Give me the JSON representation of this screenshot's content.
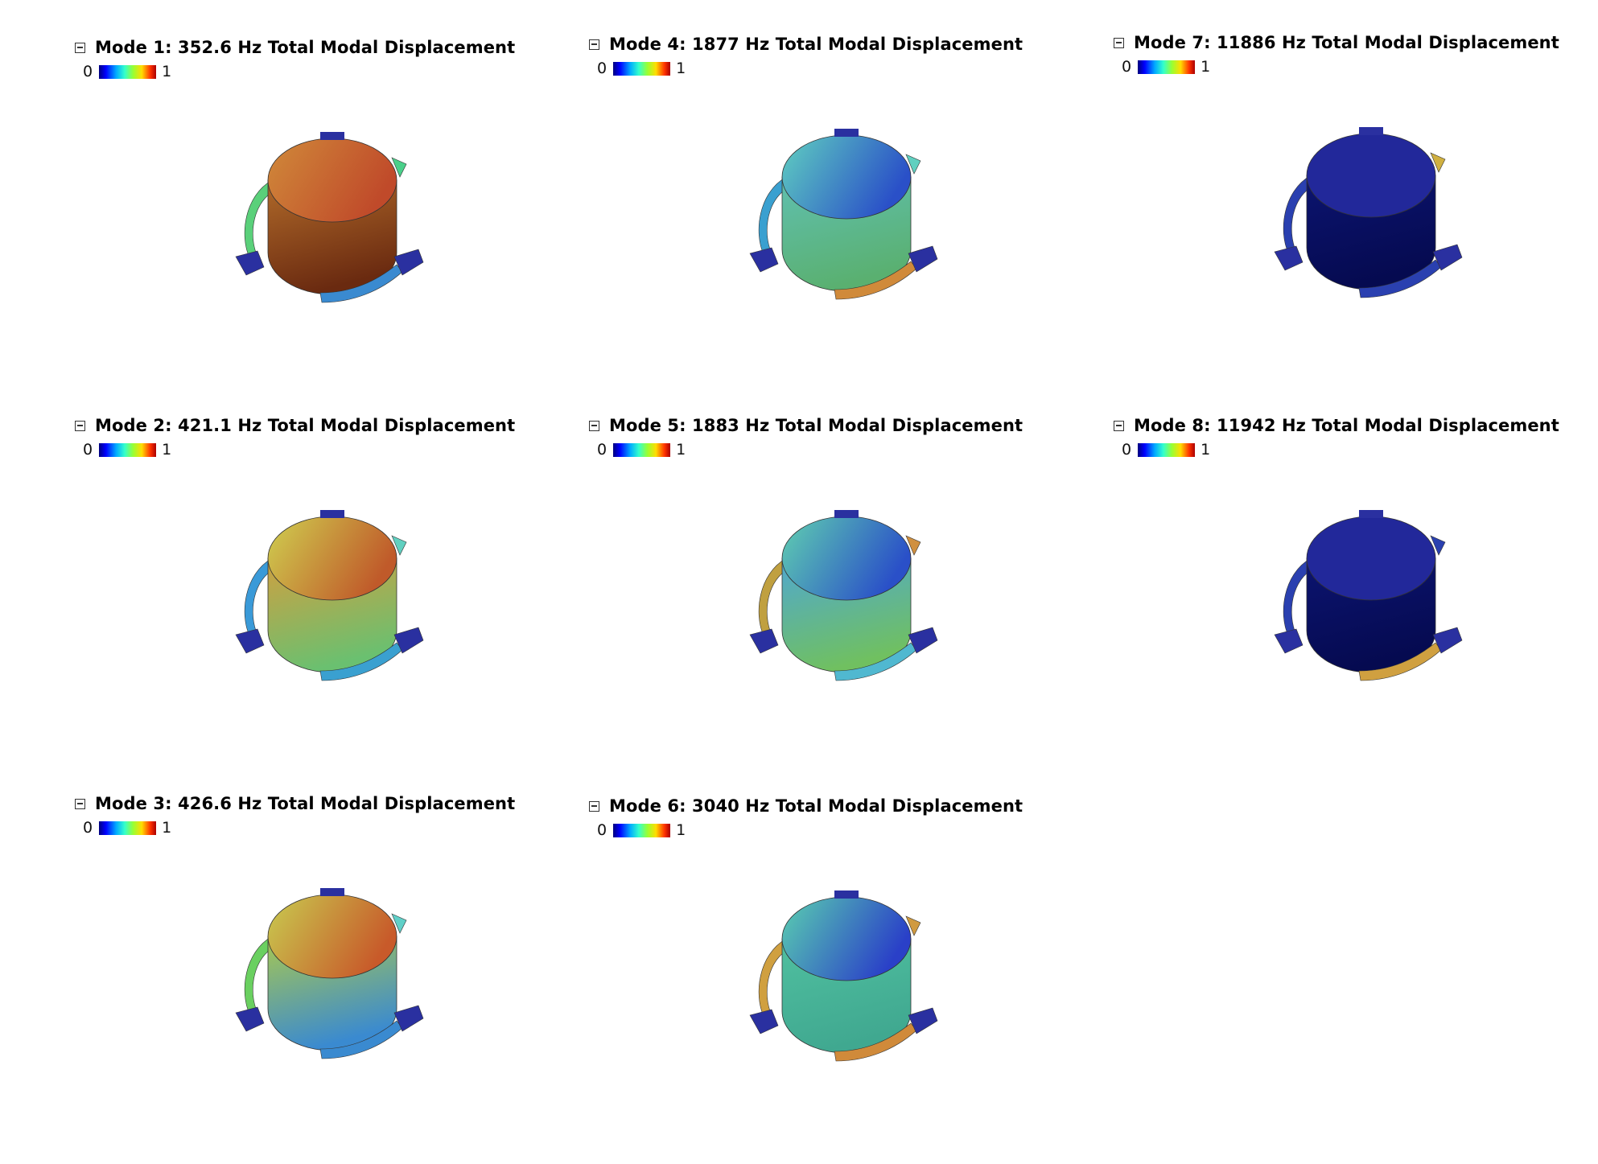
{
  "panels": [
    {
      "id": "mode-1",
      "title": "Mode 1: 352.6 Hz Total Modal Displacement",
      "legend_min": "0",
      "legend_max": "1",
      "colors": {
        "top_a": "#d08a3a",
        "top_b": "#c04a2a",
        "side_a": "#b06a2a",
        "side_b": "#6a2a10",
        "arm_left": "#5ad07a",
        "arm_right": "#3a8ad0",
        "tab": "#4ad08a"
      }
    },
    {
      "id": "mode-2",
      "title": "Mode 2: 421.1 Hz Total Modal Displacement",
      "legend_min": "0",
      "legend_max": "1",
      "colors": {
        "top_a": "#cfd050",
        "top_b": "#c05a2a",
        "side_a": "#d0a040",
        "side_b": "#6ac070",
        "arm_left": "#3a9ad8",
        "arm_right": "#3aa0d0",
        "tab": "#60d0c0"
      }
    },
    {
      "id": "mode-3",
      "title": "Mode 3: 426.6 Hz Total Modal Displacement",
      "legend_min": "0",
      "legend_max": "1",
      "colors": {
        "top_a": "#c8cc50",
        "top_b": "#c85a2a",
        "side_a": "#a8c850",
        "side_b": "#3a8ad0",
        "arm_left": "#6ad060",
        "arm_right": "#3a8ad0",
        "tab": "#60d0c8"
      }
    },
    {
      "id": "mode-4",
      "title": "Mode 4: 1877 Hz Total Modal Displacement",
      "legend_min": "0",
      "legend_max": "1",
      "colors": {
        "top_a": "#60d0c0",
        "top_b": "#2a50c8",
        "side_a": "#60c0b0",
        "side_b": "#5ab070",
        "arm_left": "#3aa0d0",
        "arm_right": "#d08a3a",
        "tab": "#60d0c0"
      }
    },
    {
      "id": "mode-5",
      "title": "Mode 5: 1883 Hz Total Modal Displacement",
      "legend_min": "0",
      "legend_max": "1",
      "colors": {
        "top_a": "#60d0b0",
        "top_b": "#2a50c8",
        "side_a": "#50a8d0",
        "side_b": "#70c060",
        "arm_left": "#c0a040",
        "arm_right": "#50b8d0",
        "tab": "#d09040"
      }
    },
    {
      "id": "mode-6",
      "title": "Mode 6: 3040 Hz Total Modal Displacement",
      "legend_min": "0",
      "legend_max": "1",
      "colors": {
        "top_a": "#5ad0b0",
        "top_b": "#2a40c8",
        "side_a": "#50c0a0",
        "side_b": "#40a890",
        "arm_left": "#d0a040",
        "arm_right": "#d08a3a",
        "tab": "#d09a40"
      }
    },
    {
      "id": "mode-7",
      "title": "Mode 7: 11886 Hz Total Modal Displacement",
      "legend_min": "0",
      "legend_max": "1",
      "colors": {
        "top_a": "#22289a",
        "top_b": "#22289a",
        "side_a": "#0c1470",
        "side_b": "#050a50",
        "arm_left": "#2a40b0",
        "arm_right": "#2a40b0",
        "tab": "#d0b040"
      }
    },
    {
      "id": "mode-8",
      "title": "Mode 8: 11942 Hz Total Modal Displacement",
      "legend_min": "0",
      "legend_max": "1",
      "colors": {
        "top_a": "#22289a",
        "top_b": "#22289a",
        "side_a": "#0c1470",
        "side_b": "#050a50",
        "arm_left": "#2a40b0",
        "arm_right": "#d0a040",
        "tab": "#2a40b0"
      }
    }
  ]
}
